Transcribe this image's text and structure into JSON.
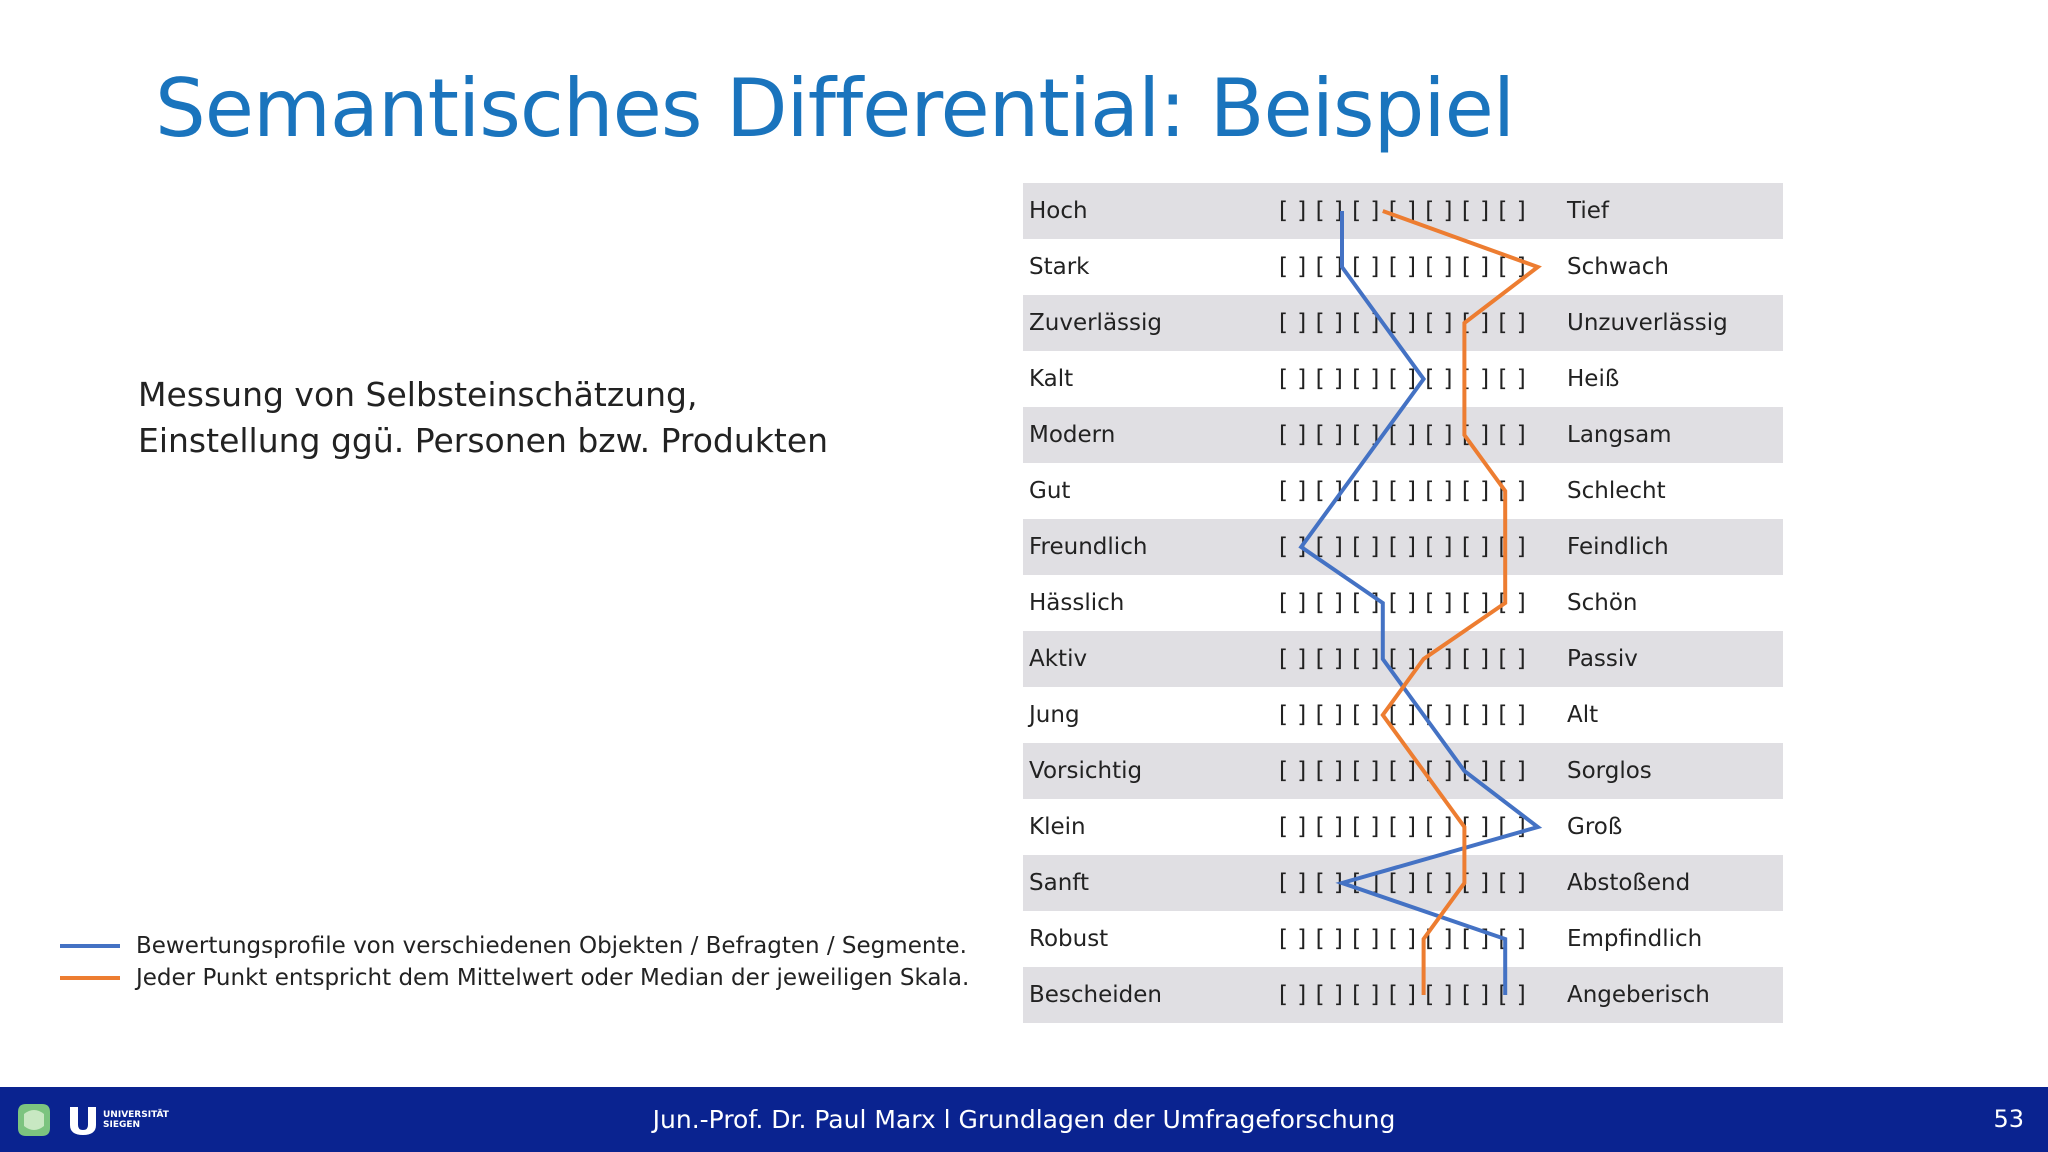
{
  "slide": {
    "title": "Semantisches Differential: Beispiel",
    "description_lines": [
      "Messung von Selbsteinschätzung,",
      "Einstellung ggü. Personen bzw. Produkten"
    ]
  },
  "legend": {
    "items": [
      {
        "text": "Bewertungsprofile von verschiedenen Objekten / Befragten / Segmente.",
        "color": "#4472c4"
      },
      {
        "text": "Jeder Punkt entspricht dem Mittelwert oder Median der jeweiligen Skala.",
        "color": "#ed7d31"
      }
    ]
  },
  "scale_markers": "[ ] [ ] [ ] [ ] [ ] [ ] [ ]",
  "chart_data": {
    "type": "line",
    "scale_points": 7,
    "rows": [
      {
        "left": "Hoch",
        "right": "Tief"
      },
      {
        "left": "Stark",
        "right": "Schwach"
      },
      {
        "left": "Zuverlässig",
        "right": "Unzuverlässig"
      },
      {
        "left": "Kalt",
        "right": "Heiß"
      },
      {
        "left": "Modern",
        "right": "Langsam"
      },
      {
        "left": "Gut",
        "right": "Schlecht"
      },
      {
        "left": "Freundlich",
        "right": "Feindlich"
      },
      {
        "left": "Hässlich",
        "right": "Schön"
      },
      {
        "left": "Aktiv",
        "right": "Passiv"
      },
      {
        "left": "Jung",
        "right": "Alt"
      },
      {
        "left": "Vorsichtig",
        "right": "Sorglos"
      },
      {
        "left": "Klein",
        "right": "Groß"
      },
      {
        "left": "Sanft",
        "right": "Abstoßend"
      },
      {
        "left": "Robust",
        "right": "Empfindlich"
      },
      {
        "left": "Bescheiden",
        "right": "Angeberisch"
      }
    ],
    "series": [
      {
        "color": "#4472c4",
        "values": [
          2.2,
          2.2,
          3.2,
          4.2,
          3.2,
          2.2,
          1.2,
          3.2,
          3.2,
          4.2,
          5.2,
          7.0,
          2.2,
          6.2,
          6.2
        ]
      },
      {
        "color": "#ed7d31",
        "values": [
          3.2,
          7.0,
          5.2,
          5.2,
          5.2,
          6.2,
          6.2,
          6.2,
          4.2,
          3.2,
          4.2,
          5.2,
          5.2,
          4.2,
          4.2
        ]
      }
    ]
  },
  "footer": {
    "text": "Jun.-Prof. Dr. Paul Marx l Grundlagen der Umfrageforschung",
    "page_number": "53",
    "university_line1": "UNIVERSITÄT",
    "university_line2": "SIEGEN"
  }
}
